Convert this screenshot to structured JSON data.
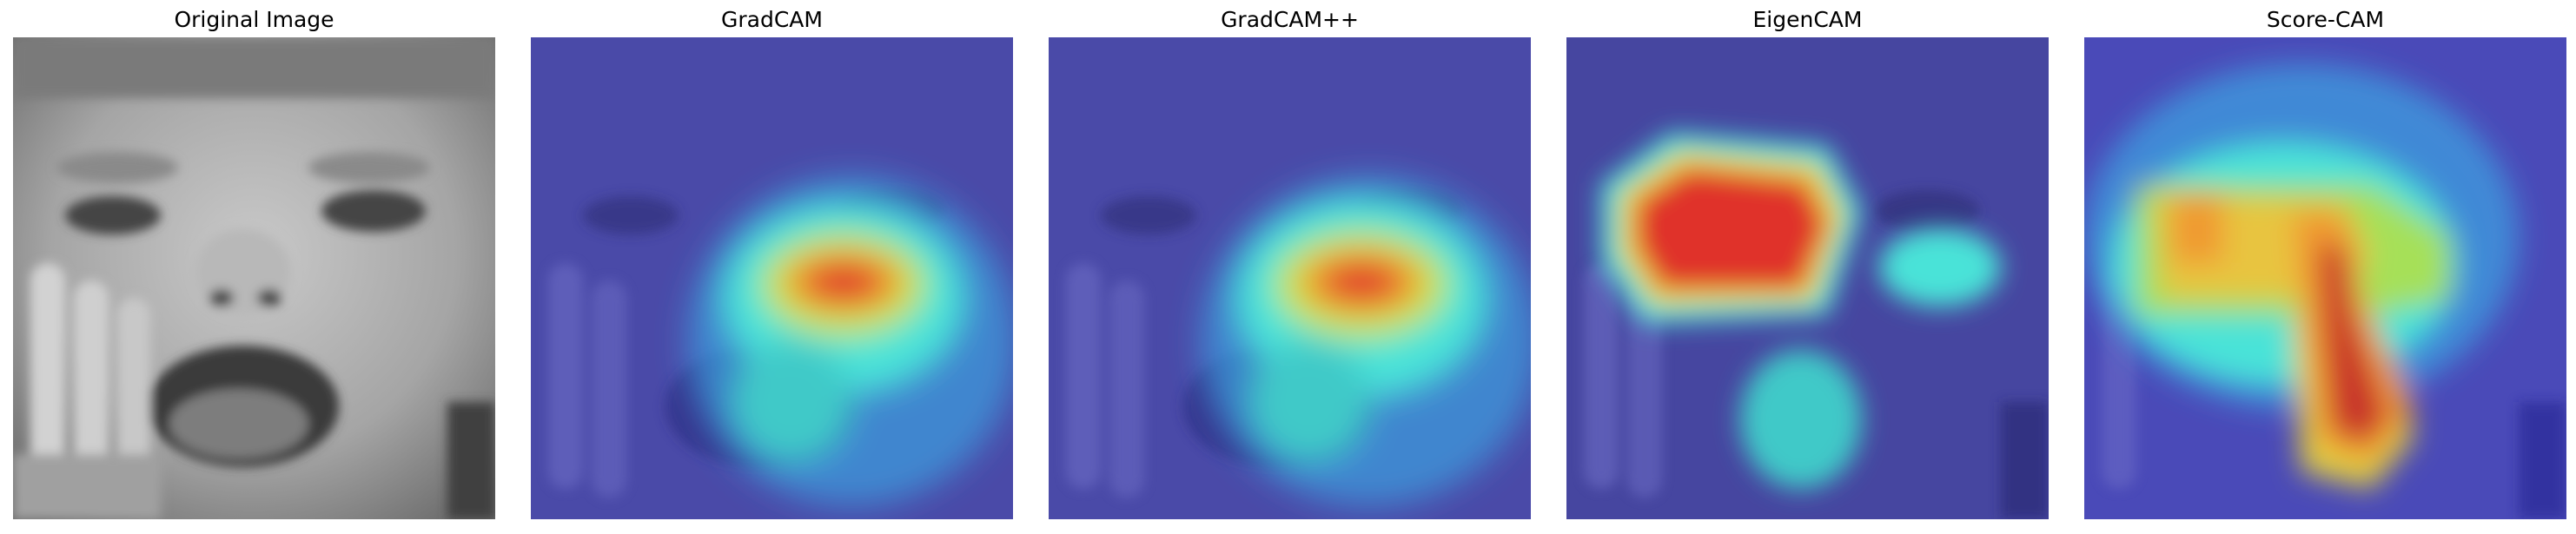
{
  "panels": [
    {
      "title": "Original Image",
      "kind": "grayscale-face",
      "colormap": "gray"
    },
    {
      "title": "GradCAM",
      "kind": "heatmap-overlay",
      "colormap": "jet",
      "peak_region": "cheek-right"
    },
    {
      "title": "GradCAM++",
      "kind": "heatmap-overlay",
      "colormap": "jet",
      "peak_region": "cheek-right"
    },
    {
      "title": "EigenCAM",
      "kind": "heatmap-overlay",
      "colormap": "jet",
      "peak_region": "eyes-left"
    },
    {
      "title": "Score-CAM",
      "kind": "heatmap-overlay",
      "colormap": "jet",
      "peak_region": "eyes-and-mouth"
    }
  ],
  "colors": {
    "background": "#ffffff",
    "title_text": "#000000",
    "heatmap_low": "#3b3bd0",
    "heatmap_mid": "#49e3e0",
    "heatmap_high": "#e0302a"
  }
}
